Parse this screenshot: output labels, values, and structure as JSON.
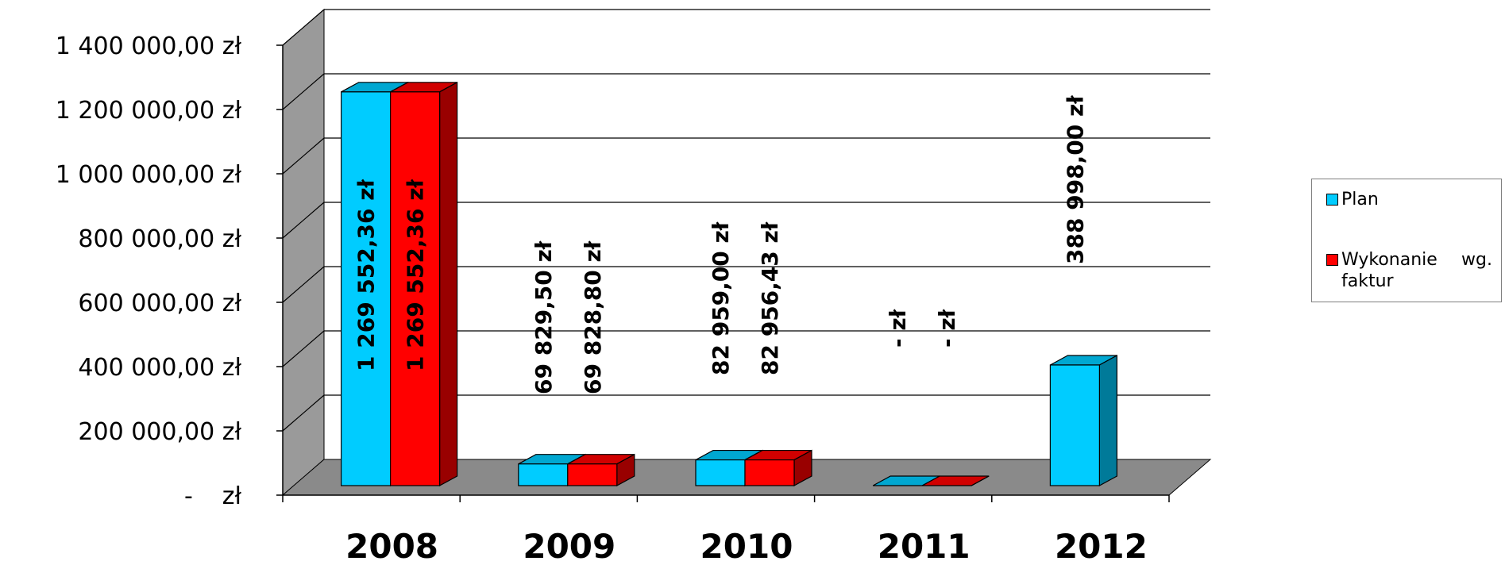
{
  "chart_data": {
    "type": "bar",
    "categories": [
      "2008",
      "2009",
      "2010",
      "2011",
      "2012"
    ],
    "series": [
      {
        "name": "Plan",
        "color": "#00ccff",
        "values": [
          1269552.36,
          69829.5,
          82959.0,
          0,
          388998.0
        ],
        "labels": [
          "1 269 552,36 zł",
          "69 829,50 zł",
          "82 959,00 zł",
          "-   zł",
          "388 998,00 zł"
        ]
      },
      {
        "name": "Wykonanie  wg. faktur",
        "color": "#ff0000",
        "values": [
          1269552.36,
          69828.8,
          82956.43,
          0,
          null
        ],
        "labels": [
          "1 269 552,36 zł",
          "69 828,80 zł",
          "82 956,43 zł",
          "-   zł",
          null
        ]
      }
    ],
    "ylim": [
      0,
      1400000
    ],
    "y_ticks": [
      0,
      200000,
      400000,
      600000,
      800000,
      1000000,
      1200000,
      1400000
    ],
    "y_tick_labels": [
      "-    zł",
      "200 000,00 zł",
      "400 000,00 zł",
      "600 000,00 zł",
      "800 000,00 zł",
      "1 000 000,00 zł",
      "1 200 000,00 zł",
      "1 400 000,00 zł"
    ],
    "grid": true,
    "legend_position": "right",
    "style": "3d-column"
  },
  "legend": {
    "items": [
      {
        "label": "Plan",
        "color": "#00ccff"
      },
      {
        "label": "Wykonanie  wg. faktur",
        "color": "#ff0000"
      }
    ]
  }
}
